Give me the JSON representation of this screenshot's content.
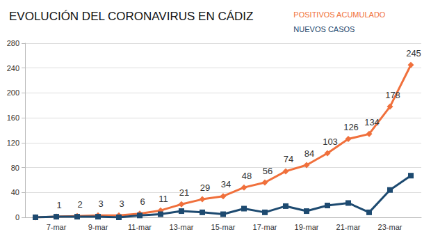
{
  "chart_data": {
    "type": "line",
    "title": "EVOLUCIÓN DEL CORONAVIRUS EN CÁDIZ",
    "categories": [
      null,
      "7-mar",
      null,
      "9-mar",
      null,
      "11-mar",
      null,
      "13-mar",
      null,
      "15-mar",
      null,
      "17-mar",
      null,
      "19-mar",
      null,
      "21-mar",
      null,
      "23-mar",
      null
    ],
    "series": [
      {
        "name": "POSITIVOS ACUMULADO",
        "color": "#f0703c",
        "marker": "diamond",
        "data_labels": true,
        "values": [
          0,
          1,
          2,
          3,
          3,
          6,
          11,
          21,
          29,
          34,
          48,
          56,
          74,
          84,
          103,
          126,
          134,
          178,
          245
        ],
        "value_labels": [
          null,
          "1",
          "2",
          "3",
          "3",
          "6",
          "11",
          "21",
          "29",
          "34",
          "48",
          "56",
          "74",
          "84",
          "103",
          "126",
          "134",
          "178",
          "245"
        ]
      },
      {
        "name": "NUEVOS CASOS",
        "color": "#1d4a70",
        "marker": "square",
        "data_labels": false,
        "values": [
          0,
          1,
          1,
          1,
          0,
          3,
          5,
          10,
          8,
          5,
          14,
          8,
          18,
          10,
          19,
          23,
          8,
          44,
          67
        ]
      }
    ],
    "ylim": [
      0,
      280
    ],
    "yticks": [
      0,
      40,
      80,
      120,
      160,
      200,
      240,
      280
    ],
    "grid": true,
    "legend": "top-right"
  }
}
